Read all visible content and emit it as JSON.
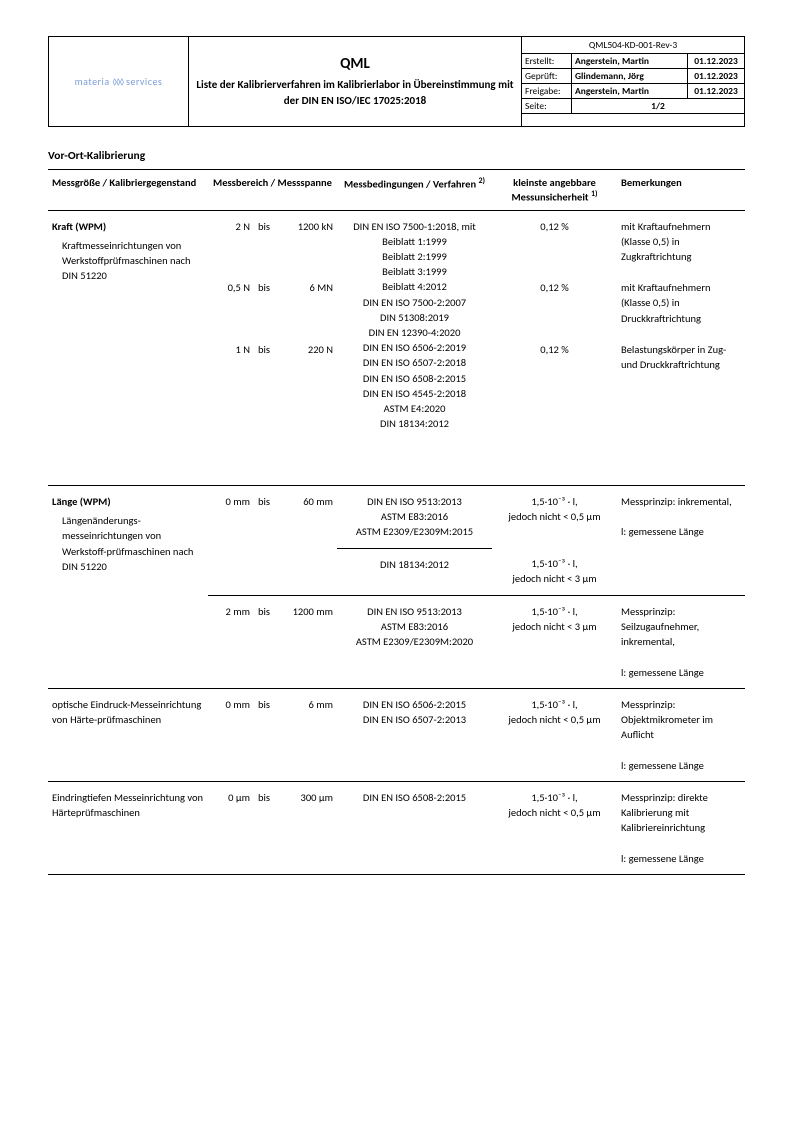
{
  "header": {
    "logo_text": "materia",
    "logo_text2": "services",
    "title_main": "QML",
    "title_sub": "Liste der Kalibrierverfahren im Kalibrierlabor in Übereinstimmung mit der DIN EN ISO/IEC 17025:2018",
    "doc_id": "QML504-KD-001-Rev-3",
    "rows": [
      {
        "label": "Erstellt:",
        "name": "Angerstein, Martin",
        "date": "01.12.2023"
      },
      {
        "label": "Geprüft:",
        "name": "Glindemann, Jörg",
        "date": "01.12.2023"
      },
      {
        "label": "Freigabe:",
        "name": "Angerstein, Martin",
        "date": "01.12.2023"
      }
    ],
    "page_label": "Seite:",
    "page_value": "1/2"
  },
  "section_title": "Vor-Ort-Kalibrierung",
  "columns": {
    "c1": "Messgröße / Kalibriergegenstand",
    "c2": "Messbereich / Messspanne",
    "c3_a": "Messbedingungen / Verfahren",
    "c3_sup": "2)",
    "c4_a": "kleinste angebbare Messunsicherheit",
    "c4_sup": "1)",
    "c5": "Bemerkungen"
  },
  "kraft": {
    "title": "Kraft (WPM)",
    "desc": "Kraftmesseinrichtungen von Werkstoffprüfmaschinen nach DIN 51220",
    "r1": {
      "from": "2 N",
      "to": "1200 kN"
    },
    "r2": {
      "from": "0,5 N",
      "to": "6 MN"
    },
    "r3": {
      "from": "1 N",
      "to": "220 N"
    },
    "procs": [
      "DIN EN ISO 7500-1:2018, mit",
      "Beiblatt 1:1999",
      "Beiblatt 2:1999",
      "Beiblatt 3:1999",
      "Beiblatt 4:2012",
      "DIN EN ISO 7500-2:2007",
      "DIN 51308:2019",
      "DIN EN 12390-4:2020",
      "DIN EN ISO 6506-2:2019",
      "DIN EN ISO 6507-2:2018",
      "DIN EN ISO 6508-2:2015",
      "DIN EN ISO 4545-2:2018",
      "ASTM E4:2020",
      "DIN 18134:2012"
    ],
    "unc": "0,12 %",
    "rem1": "mit Kraftaufnehmern (Klasse 0,5) in Zugkraftrichtung",
    "rem2": "mit Kraftaufnehmern (Klasse 0,5) in Druckkraftrichtung",
    "rem3": "Belastungskörper in Zug- und Druckkraftrichtung"
  },
  "laenge": {
    "title": "Länge (WPM)",
    "desc": "Längenänderungs-messeinrichtungen von Werkstoff-prüfmaschinen nach DIN 51220",
    "r1": {
      "from": "0 mm",
      "to": "60 mm"
    },
    "p1": [
      "DIN EN ISO 9513:2013",
      "ASTM E83:2016",
      "ASTM E2309/E2309M:2015"
    ],
    "u1a": "1,5·10⁻³ · l,",
    "u1b": "jedoch nicht < 0,5 µm",
    "rem1a": "Messprinzip: inkremental,",
    "rem1b": "l: gemessene Länge",
    "p2": "DIN 18134:2012",
    "u2a": "1,5·10⁻³ · l,",
    "u2b": "jedoch nicht < 3 µm",
    "r3": {
      "from": "2 mm",
      "to": "1200 mm"
    },
    "p3": [
      "DIN EN ISO 9513:2013",
      "ASTM E83:2016",
      "ASTM E2309/E2309M:2020"
    ],
    "u3a": "1,5·10⁻³ · l,",
    "u3b": "jedoch nicht < 3 µm",
    "rem3a": "Messprinzip: Seilzugaufnehmer, inkremental,",
    "rem3b": "l: gemessene Länge"
  },
  "optisch": {
    "title": "optische Eindruck-Messeinrichtung von Härte-prüfmaschinen",
    "r": {
      "from": "0 mm",
      "to": "6 mm"
    },
    "p": [
      "DIN EN ISO 6506-2:2015",
      "DIN EN ISO 6507-2:2013"
    ],
    "ua": "1,5·10⁻³ · l,",
    "ub": "jedoch nicht < 0,5 µm",
    "rema": "Messprinzip: Objektmikrometer im Auflicht",
    "remb": "l: gemessene Länge"
  },
  "eindring": {
    "title": "Eindringtiefen Messeinrichtung von Härteprüfmaschinen",
    "r": {
      "from": "0 µm",
      "to": "300 µm"
    },
    "p": "DIN EN ISO 6508-2:2015",
    "ua": "1,5·10⁻³ · l,",
    "ub": "jedoch nicht < 0,5 µm",
    "rema": "Messprinzip: direkte Kalibrierung mit Kalibriereinrichtung",
    "remb": "l: gemessene Länge"
  },
  "bis": "bis"
}
